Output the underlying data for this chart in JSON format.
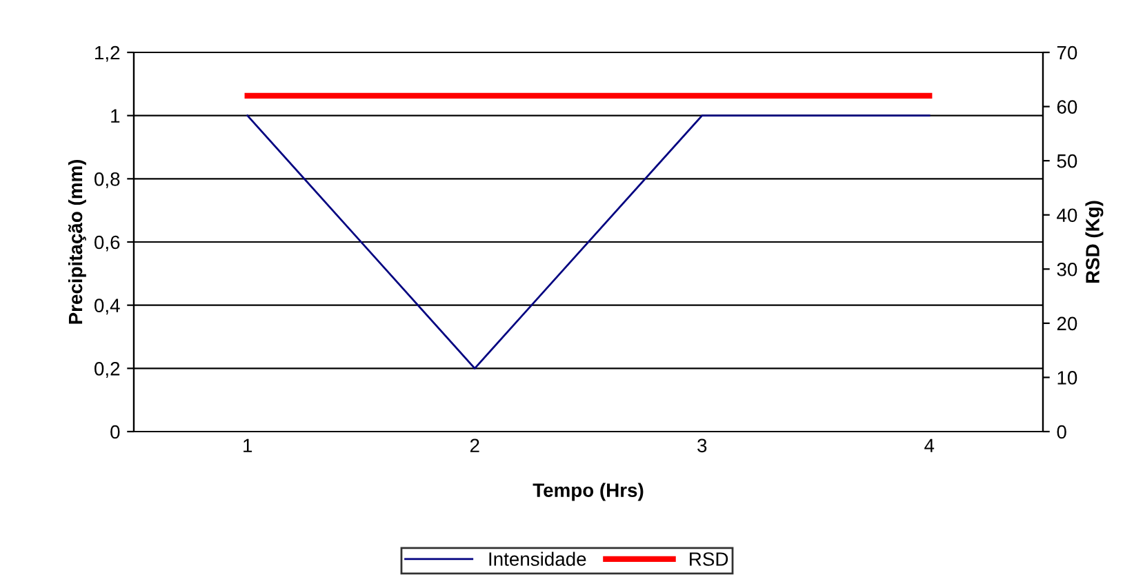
{
  "chart_data": {
    "type": "line",
    "xlabel": "Tempo (Hrs)",
    "ylabel": "Precipitação (mm)",
    "y2label": "RSD (Kg)",
    "categories": [
      "1",
      "2",
      "3",
      "4"
    ],
    "series": [
      {
        "name": "Intensidade",
        "color": "#000080",
        "values": [
          1,
          0.2,
          1,
          1
        ]
      },
      {
        "name": "RSD",
        "color": "#ff0000",
        "values": [
          62,
          62,
          62,
          62
        ],
        "axis": "y2"
      }
    ],
    "ylim": [
      0,
      1.2
    ],
    "yticks": [
      0,
      {
        "value": 0.2,
        "label": "0,2"
      },
      {
        "value": 0.4,
        "label": "0,4"
      },
      {
        "value": 0.6,
        "label": "0,6"
      },
      {
        "value": 0.8,
        "label": "0,8"
      },
      1,
      {
        "value": 1.2,
        "label": "1,2"
      }
    ],
    "y2lim": [
      0,
      70
    ],
    "y2ticks": [
      0,
      10,
      20,
      30,
      40,
      50,
      60,
      70
    ],
    "grid": "y",
    "legend": "bottom",
    "marker": "none"
  }
}
